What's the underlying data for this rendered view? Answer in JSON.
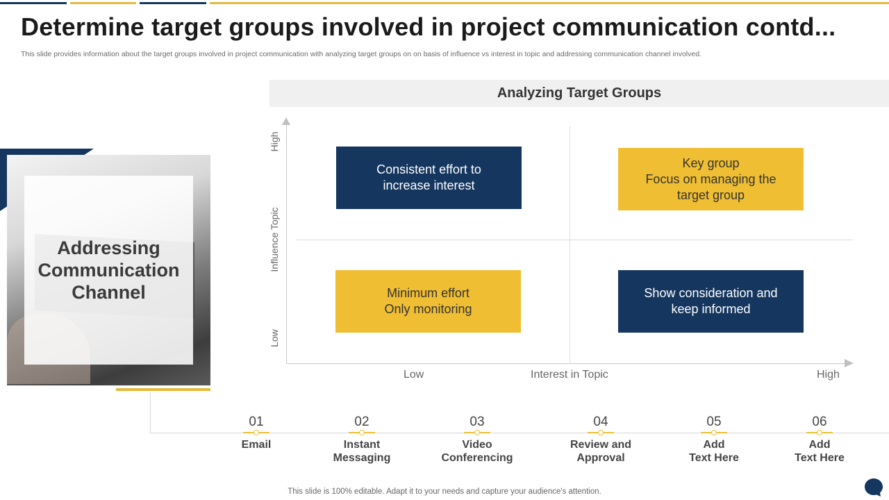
{
  "slide": {
    "title": "Determine target groups involved in project communication contd...",
    "subtitle": "This slide provides information about the target groups involved in project communication with analyzing target groups on on basis of influence vs interest in topic and addressing communication channel involved.",
    "footer": "This slide is 100% editable. Adapt it to your needs and capture your audience's attention."
  },
  "colors": {
    "navy": "#15365f",
    "gold": "#f0be32",
    "header_bg": "#f0f0f0"
  },
  "left_panel": {
    "label": "Addressing\nCommunication\nChannel",
    "image": "laptop-photo"
  },
  "matrix": {
    "title": "Analyzing Target Groups",
    "y_axis": {
      "label": "Influence  Topic",
      "high": "High",
      "low": "Low"
    },
    "x_axis": {
      "label": "Interest  in Topic",
      "low": "Low",
      "high": "High"
    },
    "quadrants": {
      "top_left": "Consistent effort to\nincrease interest",
      "top_right": "Key group\nFocus on managing the\ntarget group",
      "bottom_left": "Minimum effort\nOnly monitoring",
      "bottom_right": "Show consideration and\nkeep informed"
    }
  },
  "channels": [
    {
      "num": "01",
      "label": "Email"
    },
    {
      "num": "02",
      "label": "Instant\nMessaging"
    },
    {
      "num": "03",
      "label": "Video\nConferencing"
    },
    {
      "num": "04",
      "label": "Review and\nApproval"
    },
    {
      "num": "05",
      "label": "Add\nText Here"
    },
    {
      "num": "06",
      "label": "Add\nText Here"
    }
  ],
  "icons": {
    "chat": "chat-bubble-icon"
  }
}
